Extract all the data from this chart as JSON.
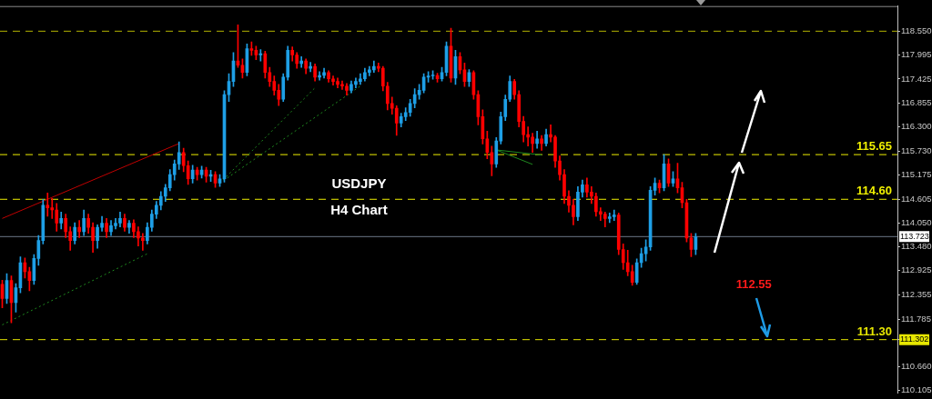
{
  "chart_data": {
    "type": "candlestick",
    "title": "USDJPY",
    "subtitle": "H4 Chart",
    "categories": [
      null,
      null,
      null,
      null,
      null,
      null,
      null,
      null,
      null,
      null,
      null,
      null,
      null,
      null,
      null,
      null,
      null,
      null,
      null,
      null,
      null,
      null,
      null,
      null,
      null,
      null,
      null,
      null,
      null,
      null,
      null,
      null,
      null,
      null,
      null,
      null,
      null,
      null,
      null,
      null,
      null,
      null,
      null,
      null,
      null,
      null,
      null,
      null,
      null,
      null,
      null,
      null,
      null,
      null,
      null,
      null,
      null,
      null,
      null,
      null,
      null,
      null,
      null,
      null,
      null,
      null,
      null,
      null,
      null,
      null,
      null,
      null,
      null,
      null,
      null,
      null,
      null,
      null,
      null,
      null,
      null,
      null,
      null,
      null,
      null,
      null,
      null,
      null,
      null,
      null,
      null,
      null,
      null,
      null,
      null,
      null,
      null,
      null,
      null,
      null,
      null,
      null,
      null,
      null,
      null,
      null,
      null,
      null,
      null,
      null,
      null,
      null,
      null,
      null,
      null,
      null,
      null,
      null,
      null,
      null,
      null,
      null,
      null,
      null,
      null,
      null,
      null,
      null,
      null,
      null,
      null,
      null,
      null,
      null,
      null,
      null,
      null,
      null,
      null,
      null,
      null,
      null,
      null,
      null,
      null,
      null,
      null,
      null,
      null,
      null,
      null,
      null,
      null,
      null,
      null,
      null,
      null,
      null,
      null,
      null,
      null,
      null,
      null,
      null,
      null,
      null,
      null,
      null,
      null,
      null,
      null,
      null,
      null,
      null,
      null,
      null,
      null,
      null,
      null,
      null,
      null,
      null,
      null,
      null,
      null,
      null,
      null,
      null,
      null,
      null,
      null,
      null,
      null,
      null,
      null,
      null,
      null,
      null
    ],
    "ohlc": [
      [
        112.6,
        112.7,
        112.05,
        112.27
      ],
      [
        112.27,
        112.85,
        112.15,
        112.69
      ],
      [
        112.69,
        112.8,
        111.7,
        112.17
      ],
      [
        112.17,
        112.62,
        111.95,
        112.52
      ],
      [
        112.52,
        113.25,
        112.4,
        113.11
      ],
      [
        113.11,
        113.22,
        112.75,
        112.9
      ],
      [
        112.9,
        113.0,
        112.45,
        112.69
      ],
      [
        112.69,
        113.3,
        112.6,
        113.21
      ],
      [
        113.21,
        113.75,
        113.05,
        113.63
      ],
      [
        113.63,
        114.6,
        113.55,
        114.46
      ],
      [
        114.46,
        114.75,
        114.2,
        114.4
      ],
      [
        114.4,
        114.62,
        114.15,
        114.35
      ],
      [
        114.35,
        114.5,
        113.85,
        114.04
      ],
      [
        114.04,
        114.3,
        113.9,
        114.15
      ],
      [
        114.15,
        114.25,
        113.7,
        113.84
      ],
      [
        113.84,
        113.95,
        113.4,
        113.63
      ],
      [
        113.63,
        114.05,
        113.55,
        113.94
      ],
      [
        113.94,
        114.1,
        113.7,
        113.84
      ],
      [
        113.84,
        114.35,
        113.75,
        114.15
      ],
      [
        114.15,
        114.25,
        113.8,
        113.94
      ],
      [
        113.94,
        114.05,
        113.35,
        113.63
      ],
      [
        113.63,
        114.0,
        113.45,
        113.94
      ],
      [
        113.94,
        114.2,
        113.85,
        114.04
      ],
      [
        114.04,
        114.15,
        113.7,
        113.84
      ],
      [
        113.84,
        114.1,
        113.75,
        113.98
      ],
      [
        113.98,
        114.15,
        113.9,
        114.04
      ],
      [
        114.04,
        114.3,
        113.95,
        114.15
      ],
      [
        114.15,
        114.25,
        113.85,
        113.94
      ],
      [
        113.94,
        114.1,
        113.8,
        114.04
      ],
      [
        114.04,
        114.12,
        113.7,
        113.84
      ],
      [
        113.84,
        113.95,
        113.5,
        113.69
      ],
      [
        113.69,
        113.8,
        113.4,
        113.63
      ],
      [
        113.63,
        114.05,
        113.55,
        113.94
      ],
      [
        113.94,
        114.35,
        113.85,
        114.25
      ],
      [
        114.25,
        114.55,
        114.15,
        114.46
      ],
      [
        114.46,
        114.78,
        114.35,
        114.67
      ],
      [
        114.67,
        114.95,
        114.55,
        114.87
      ],
      [
        114.87,
        115.3,
        114.8,
        115.18
      ],
      [
        115.18,
        115.52,
        115.05,
        115.43
      ],
      [
        115.43,
        115.95,
        115.3,
        115.7
      ],
      [
        115.7,
        115.8,
        115.25,
        115.39
      ],
      [
        115.39,
        115.5,
        114.95,
        115.08
      ],
      [
        115.08,
        115.4,
        114.98,
        115.29
      ],
      [
        115.29,
        115.35,
        115.05,
        115.18
      ],
      [
        115.18,
        115.38,
        115.1,
        115.29
      ],
      [
        115.29,
        115.35,
        115.0,
        115.14
      ],
      [
        115.14,
        115.28,
        115.02,
        115.18
      ],
      [
        115.18,
        115.25,
        114.88,
        114.98
      ],
      [
        114.98,
        115.18,
        114.9,
        115.08
      ],
      [
        115.08,
        117.15,
        115.0,
        117.06
      ],
      [
        117.06,
        117.55,
        116.9,
        117.37
      ],
      [
        117.37,
        118.05,
        117.25,
        117.85
      ],
      [
        117.85,
        118.7,
        117.7,
        117.75
      ],
      [
        117.75,
        117.9,
        117.45,
        117.58
      ],
      [
        117.58,
        118.25,
        117.5,
        118.14
      ],
      [
        118.14,
        118.3,
        117.98,
        118.1
      ],
      [
        118.1,
        118.2,
        117.88,
        117.99
      ],
      [
        117.99,
        118.12,
        117.85,
        118.02
      ],
      [
        118.02,
        118.08,
        117.45,
        117.58
      ],
      [
        117.58,
        117.7,
        117.25,
        117.37
      ],
      [
        117.37,
        117.5,
        117.05,
        117.16
      ],
      [
        117.16,
        117.3,
        116.8,
        116.95
      ],
      [
        116.95,
        117.55,
        116.9,
        117.47
      ],
      [
        117.47,
        118.2,
        117.4,
        118.1
      ],
      [
        118.1,
        118.18,
        117.85,
        117.99
      ],
      [
        117.99,
        118.05,
        117.68,
        117.79
      ],
      [
        117.79,
        117.95,
        117.7,
        117.85
      ],
      [
        117.85,
        117.9,
        117.55,
        117.68
      ],
      [
        117.68,
        117.82,
        117.6,
        117.72
      ],
      [
        117.72,
        117.78,
        117.38,
        117.47
      ],
      [
        117.47,
        117.6,
        117.4,
        117.51
      ],
      [
        117.51,
        117.68,
        117.45,
        117.58
      ],
      [
        117.58,
        117.62,
        117.35,
        117.43
      ],
      [
        117.43,
        117.5,
        117.28,
        117.37
      ],
      [
        117.37,
        117.45,
        117.22,
        117.3
      ],
      [
        117.3,
        117.38,
        117.18,
        117.26
      ],
      [
        117.26,
        117.32,
        117.05,
        117.16
      ],
      [
        117.16,
        117.38,
        117.1,
        117.3
      ],
      [
        117.3,
        117.45,
        117.22,
        117.37
      ],
      [
        117.37,
        117.55,
        117.3,
        117.43
      ],
      [
        117.43,
        117.68,
        117.38,
        117.58
      ],
      [
        117.58,
        117.72,
        117.5,
        117.64
      ],
      [
        117.64,
        117.85,
        117.58,
        117.72
      ],
      [
        117.72,
        117.8,
        117.6,
        117.68
      ],
      [
        117.68,
        117.72,
        117.15,
        117.26
      ],
      [
        117.26,
        117.35,
        116.7,
        116.85
      ],
      [
        116.85,
        117.0,
        116.6,
        116.74
      ],
      [
        116.74,
        116.8,
        116.1,
        116.39
      ],
      [
        116.39,
        116.62,
        116.3,
        116.54
      ],
      [
        116.54,
        116.75,
        116.45,
        116.64
      ],
      [
        116.64,
        116.95,
        116.55,
        116.85
      ],
      [
        116.85,
        117.2,
        116.75,
        117.06
      ],
      [
        117.06,
        117.3,
        116.95,
        117.16
      ],
      [
        117.16,
        117.55,
        117.1,
        117.47
      ],
      [
        117.47,
        117.6,
        117.35,
        117.5
      ],
      [
        117.5,
        117.62,
        117.42,
        117.51
      ],
      [
        117.51,
        117.56,
        117.35,
        117.43
      ],
      [
        117.43,
        117.7,
        117.38,
        117.58
      ],
      [
        117.58,
        118.3,
        117.5,
        118.2
      ],
      [
        118.2,
        118.62,
        117.35,
        117.45
      ],
      [
        117.45,
        118.1,
        117.3,
        117.95
      ],
      [
        117.95,
        118.05,
        117.55,
        117.64
      ],
      [
        117.64,
        117.8,
        117.25,
        117.37
      ],
      [
        117.37,
        117.65,
        117.25,
        117.58
      ],
      [
        117.58,
        117.62,
        116.95,
        117.06
      ],
      [
        117.06,
        117.15,
        116.35,
        116.54
      ],
      [
        116.54,
        116.7,
        115.9,
        116.02
      ],
      [
        116.02,
        116.2,
        115.55,
        115.7
      ],
      [
        115.7,
        115.85,
        115.15,
        115.43
      ],
      [
        115.43,
        116.05,
        115.35,
        115.97
      ],
      [
        115.97,
        116.65,
        115.9,
        116.54
      ],
      [
        116.54,
        117.05,
        116.45,
        116.95
      ],
      [
        116.95,
        117.5,
        116.9,
        117.37
      ],
      [
        117.37,
        117.42,
        116.95,
        117.06
      ],
      [
        117.06,
        117.15,
        116.3,
        116.43
      ],
      [
        116.43,
        116.55,
        115.95,
        116.12
      ],
      [
        116.12,
        116.3,
        115.85,
        116.06
      ],
      [
        116.06,
        116.15,
        115.7,
        115.91
      ],
      [
        115.91,
        116.2,
        115.8,
        116.02
      ],
      [
        116.02,
        116.1,
        115.75,
        115.91
      ],
      [
        115.91,
        116.25,
        115.85,
        116.12
      ],
      [
        116.12,
        116.35,
        115.95,
        116.06
      ],
      [
        116.06,
        116.1,
        115.35,
        115.5
      ],
      [
        115.5,
        115.62,
        115.05,
        115.18
      ],
      [
        115.18,
        115.3,
        114.5,
        114.67
      ],
      [
        114.67,
        114.8,
        114.3,
        114.46
      ],
      [
        114.46,
        114.6,
        114.0,
        114.19
      ],
      [
        114.19,
        114.9,
        114.1,
        114.77
      ],
      [
        114.77,
        115.05,
        114.65,
        114.94
      ],
      [
        114.94,
        115.1,
        114.65,
        114.77
      ],
      [
        114.77,
        114.9,
        114.5,
        114.67
      ],
      [
        114.67,
        114.75,
        114.2,
        114.31
      ],
      [
        114.31,
        114.4,
        114.1,
        114.25
      ],
      [
        114.25,
        114.3,
        113.95,
        114.15
      ],
      [
        114.15,
        114.28,
        114.05,
        114.19
      ],
      [
        114.19,
        114.35,
        114.1,
        114.23
      ],
      [
        114.23,
        114.28,
        113.3,
        113.42
      ],
      [
        113.42,
        113.55,
        112.95,
        113.11
      ],
      [
        113.11,
        113.4,
        112.8,
        112.9
      ],
      [
        112.9,
        113.05,
        112.58,
        112.65
      ],
      [
        112.65,
        113.2,
        112.6,
        113.11
      ],
      [
        113.11,
        113.45,
        113.0,
        113.32
      ],
      [
        113.32,
        113.65,
        113.15,
        113.48
      ],
      [
        113.48,
        114.9,
        113.4,
        114.81
      ],
      [
        114.81,
        115.1,
        114.7,
        114.98
      ],
      [
        114.98,
        115.05,
        114.75,
        114.87
      ],
      [
        114.87,
        115.65,
        114.8,
        115.43
      ],
      [
        115.43,
        115.55,
        114.9,
        114.98
      ],
      [
        114.98,
        115.25,
        114.9,
        115.08
      ],
      [
        115.08,
        115.45,
        114.75,
        114.87
      ],
      [
        114.87,
        115.0,
        114.4,
        114.52
      ],
      [
        114.52,
        114.6,
        113.6,
        113.69
      ],
      [
        113.69,
        113.8,
        113.25,
        113.42
      ],
      [
        113.42,
        113.8,
        113.3,
        113.72
      ],
      null,
      null,
      null,
      null,
      null,
      null,
      null,
      null,
      null,
      null,
      null,
      null,
      null,
      null,
      null,
      null,
      null,
      null,
      null,
      null,
      null,
      null,
      null,
      null,
      null,
      null,
      null,
      null,
      null,
      null,
      null,
      null,
      null,
      null,
      null,
      null,
      null,
      null,
      null,
      null,
      null,
      null,
      null,
      null
    ],
    "colors": [
      "#ff0000",
      "#1e9fe6",
      "#ff0000",
      "#1e9fe6",
      "#1e9fe6",
      "#ff0000",
      "#ff0000",
      "#1e9fe6",
      "#1e9fe6",
      "#1e9fe6",
      "#ff0000",
      "#ff0000",
      "#ff0000",
      "#1e9fe6",
      "#ff0000",
      "#ff0000",
      "#1e9fe6",
      "#ff0000",
      "#1e9fe6",
      "#ff0000",
      "#ff0000",
      "#1e9fe6",
      "#1e9fe6",
      "#ff0000",
      "#1e9fe6",
      "#1e9fe6",
      "#1e9fe6",
      "#ff0000",
      "#1e9fe6",
      "#ff0000",
      "#ff0000",
      "#ff0000",
      "#1e9fe6",
      "#1e9fe6",
      "#1e9fe6",
      "#1e9fe6",
      "#1e9fe6",
      "#1e9fe6",
      "#1e9fe6",
      "#1e9fe6",
      "#ff0000",
      "#ff0000",
      "#1e9fe6",
      "#ff0000",
      "#1e9fe6",
      "#ff0000",
      "#1e9fe6",
      "#ff0000",
      "#1e9fe6",
      "#1e9fe6",
      "#1e9fe6",
      "#1e9fe6",
      "#ff0000",
      "#ff0000",
      "#1e9fe6",
      "#ff0000",
      "#ff0000",
      "#1e9fe6",
      "#ff0000",
      "#ff0000",
      "#ff0000",
      "#ff0000",
      "#1e9fe6",
      "#1e9fe6",
      "#ff0000",
      "#ff0000",
      "#1e9fe6",
      "#ff0000",
      "#1e9fe6",
      "#ff0000",
      "#1e9fe6",
      "#1e9fe6",
      "#ff0000",
      "#ff0000",
      "#ff0000",
      "#ff0000",
      "#ff0000",
      "#1e9fe6",
      "#1e9fe6",
      "#1e9fe6",
      "#1e9fe6",
      "#1e9fe6",
      "#1e9fe6",
      "#ff0000",
      "#ff0000",
      "#ff0000",
      "#ff0000",
      "#ff0000",
      "#1e9fe6",
      "#1e9fe6",
      "#1e9fe6",
      "#1e9fe6",
      "#1e9fe6",
      "#1e9fe6",
      "#1e9fe6",
      "#1e9fe6",
      "#ff0000",
      "#1e9fe6",
      "#1e9fe6",
      "#ff0000",
      "#1e9fe6",
      "#ff0000",
      "#ff0000",
      "#1e9fe6",
      "#ff0000",
      "#ff0000",
      "#ff0000",
      "#ff0000",
      "#ff0000",
      "#1e9fe6",
      "#1e9fe6",
      "#1e9fe6",
      "#1e9fe6",
      "#ff0000",
      "#ff0000",
      "#ff0000",
      "#ff0000",
      "#ff0000",
      "#1e9fe6",
      "#ff0000",
      "#1e9fe6",
      "#ff0000",
      "#ff0000",
      "#ff0000",
      "#ff0000",
      "#ff0000",
      "#ff0000",
      "#1e9fe6",
      "#1e9fe6",
      "#ff0000",
      "#ff0000",
      "#ff0000",
      "#ff0000",
      "#ff0000",
      "#1e9fe6",
      "#1e9fe6",
      "#ff0000",
      "#ff0000",
      "#ff0000",
      "#ff0000",
      "#1e9fe6",
      "#1e9fe6",
      "#1e9fe6",
      "#1e9fe6",
      "#1e9fe6",
      "#ff0000",
      "#1e9fe6",
      "#ff0000",
      "#1e9fe6",
      "#ff0000",
      "#ff0000",
      "#ff0000",
      "#ff0000",
      "#1e9fe6",
      null,
      null,
      null,
      null,
      null,
      null,
      null,
      null,
      null,
      null,
      null,
      null,
      null,
      null,
      null,
      null,
      null,
      null,
      null,
      null,
      null,
      null,
      null,
      null,
      null,
      null,
      null,
      null,
      null,
      null,
      null,
      null,
      null,
      null,
      null,
      null,
      null,
      null,
      null,
      null,
      null,
      null,
      null,
      null
    ],
    "series": [
      {
        "type": "line",
        "color": "#c00000",
        "line_style": "solid",
        "values": [
          114.15,
          null,
          null,
          null,
          null,
          null,
          null,
          null,
          null,
          null,
          null,
          null,
          null,
          null,
          null,
          null,
          null,
          null,
          null,
          null,
          null,
          null,
          null,
          null,
          null,
          null,
          null,
          null,
          null,
          null,
          null,
          null,
          null,
          null,
          null,
          null,
          null,
          null,
          null,
          115.91,
          null,
          null,
          null,
          null,
          null,
          null,
          null,
          null,
          null,
          null,
          null,
          null,
          null,
          null,
          null,
          null,
          null,
          null,
          null,
          null,
          null,
          null,
          null,
          null,
          null,
          null,
          null,
          null,
          null,
          null,
          null,
          null,
          null,
          null,
          null,
          null,
          null,
          null,
          null,
          null,
          null,
          null,
          null,
          null,
          null,
          null,
          null,
          null,
          null,
          null,
          null,
          null,
          null,
          null,
          null,
          null,
          null,
          null,
          null,
          null,
          null,
          null,
          null,
          null,
          null,
          null,
          null,
          null,
          null,
          null,
          null,
          null,
          null,
          null,
          null,
          null,
          null,
          null,
          null,
          null,
          null,
          null,
          null,
          null,
          null,
          null,
          null,
          null,
          null,
          null,
          null,
          null,
          null,
          null,
          null,
          null,
          null,
          null,
          null,
          null,
          null,
          null,
          null,
          null,
          null,
          null,
          null,
          null,
          null,
          null,
          null,
          null,
          null,
          null,
          null,
          null,
          null,
          null,
          null,
          null,
          null,
          null,
          null,
          null,
          null,
          null,
          null,
          null,
          null,
          null,
          null,
          null,
          null,
          null,
          null,
          null,
          null,
          null,
          null,
          null,
          null,
          null,
          null,
          null,
          null,
          null,
          null,
          null,
          null,
          null,
          null,
          null,
          null,
          null,
          null,
          null,
          null,
          null
        ]
      },
      {
        "type": "line",
        "color": "#1f8a1f",
        "line_style": "dotted",
        "values": [
          111.65,
          null,
          null,
          null,
          null,
          null,
          null,
          null,
          null,
          null,
          null,
          null,
          null,
          null,
          null,
          null,
          null,
          null,
          null,
          null,
          null,
          null,
          null,
          null,
          null,
          null,
          null,
          null,
          null,
          null,
          null,
          null,
          113.32,
          null,
          null,
          null,
          null,
          null,
          null,
          null,
          null,
          null,
          null,
          null,
          null,
          null,
          null,
          null,
          null,
          null,
          null,
          null,
          null,
          null,
          null,
          null,
          null,
          null,
          null,
          null,
          null,
          null,
          null,
          null,
          null,
          null,
          null,
          null,
          null,
          null,
          null,
          null,
          null,
          null,
          null,
          null,
          null,
          null,
          null,
          null,
          null,
          null,
          null,
          null,
          null,
          null,
          null,
          null,
          null,
          null,
          null,
          null,
          null,
          null,
          null,
          null,
          null,
          null,
          null,
          null,
          null,
          null,
          null,
          null,
          null,
          null,
          null,
          null,
          null,
          null,
          null,
          null,
          null,
          null,
          null,
          null,
          null,
          null,
          null,
          null,
          null,
          null,
          null,
          null,
          null,
          null,
          null,
          null,
          null,
          null,
          null,
          null,
          null,
          null,
          null,
          null,
          null,
          null,
          null,
          null,
          null,
          null,
          null,
          null,
          null,
          null,
          null,
          null,
          null,
          null,
          null,
          null,
          null,
          null,
          null,
          null,
          null,
          null,
          null,
          null,
          null,
          null,
          null,
          null,
          null,
          null,
          null,
          null,
          null,
          null,
          null,
          null,
          null,
          null,
          null,
          null,
          null,
          null,
          null,
          null,
          null,
          null,
          null,
          null,
          null,
          null,
          null,
          null,
          null,
          null,
          null,
          null,
          null,
          null,
          null,
          null,
          null,
          null
        ]
      },
      {
        "type": "line",
        "color": "#1f8a1f",
        "line_style": "dotted",
        "values": [
          null,
          null,
          null,
          null,
          null,
          null,
          null,
          null,
          null,
          null,
          null,
          null,
          null,
          null,
          null,
          null,
          null,
          null,
          null,
          null,
          null,
          null,
          null,
          null,
          null,
          null,
          null,
          null,
          null,
          null,
          null,
          null,
          null,
          null,
          null,
          null,
          null,
          null,
          null,
          null,
          null,
          null,
          null,
          null,
          null,
          null,
          null,
          null,
          114.98,
          null,
          null,
          null,
          null,
          null,
          null,
          null,
          null,
          null,
          null,
          null,
          null,
          null,
          null,
          null,
          null,
          null,
          null,
          null,
          null,
          117.22,
          null,
          null,
          null,
          null,
          null,
          null,
          null,
          null,
          null,
          null,
          null,
          null,
          null,
          null,
          null,
          null,
          null,
          null,
          null,
          null,
          null,
          null,
          null,
          null,
          null,
          null,
          null,
          null,
          null,
          null,
          null,
          null,
          null,
          null,
          null,
          null,
          null,
          null,
          null,
          null,
          null,
          null,
          null,
          null,
          null,
          null,
          null,
          null,
          null,
          null,
          null,
          null,
          null,
          null,
          null,
          null,
          null,
          null,
          null,
          null,
          null,
          null,
          null,
          null,
          null,
          null,
          null,
          null,
          null,
          null,
          null,
          null,
          null,
          null,
          null,
          null,
          null,
          null,
          null,
          null,
          null,
          null,
          null,
          null,
          null,
          null,
          null,
          null,
          null,
          null,
          null,
          null,
          null,
          null,
          null,
          null,
          null,
          null,
          null,
          null,
          null,
          null,
          null,
          null,
          null,
          null,
          null,
          null,
          null,
          null,
          null,
          null,
          null,
          null,
          null,
          null,
          null,
          null,
          null,
          null,
          null,
          null,
          null,
          null,
          null,
          null,
          null,
          null
        ]
      },
      {
        "type": "line",
        "color": "#1f8a1f",
        "line_style": "dotted",
        "values": [
          null,
          null,
          null,
          null,
          null,
          null,
          null,
          null,
          null,
          null,
          null,
          null,
          null,
          null,
          null,
          null,
          null,
          null,
          null,
          null,
          null,
          null,
          null,
          null,
          null,
          null,
          null,
          null,
          null,
          null,
          null,
          null,
          null,
          null,
          null,
          null,
          null,
          null,
          null,
          null,
          null,
          null,
          null,
          null,
          null,
          null,
          null,
          null,
          114.98,
          null,
          null,
          null,
          null,
          null,
          null,
          null,
          null,
          null,
          null,
          null,
          null,
          null,
          null,
          null,
          null,
          null,
          null,
          null,
          null,
          null,
          null,
          null,
          null,
          null,
          null,
          null,
          null,
          null,
          null,
          117.26,
          null,
          null,
          null,
          null,
          null,
          null,
          null,
          null,
          null,
          null,
          null,
          null,
          null,
          null,
          null,
          null,
          null,
          null,
          null,
          null,
          null,
          null,
          null,
          null,
          null,
          null,
          null,
          null,
          null,
          null,
          null,
          null,
          null,
          null,
          null,
          null,
          null,
          null,
          null,
          null,
          null,
          null,
          null,
          null,
          null,
          null,
          null,
          null,
          null,
          null,
          null,
          null,
          null,
          null,
          null,
          null,
          null,
          null,
          null,
          null,
          null,
          null,
          null,
          null,
          null,
          null,
          null,
          null,
          null,
          null,
          null,
          null,
          null,
          null,
          null,
          null,
          null,
          null,
          null,
          null,
          null,
          null,
          null,
          null,
          null,
          null,
          null,
          null,
          null,
          null,
          null,
          null,
          null,
          null,
          null,
          null,
          null,
          null,
          null,
          null,
          null,
          null,
          null,
          null,
          null,
          null,
          null,
          null,
          null,
          null,
          null,
          null,
          null,
          null,
          null,
          null,
          null,
          null
        ]
      },
      {
        "type": "line",
        "color": "#1f8a1f",
        "line_style": "solid",
        "values": [
          null,
          null,
          null,
          null,
          null,
          null,
          null,
          null,
          null,
          null,
          null,
          null,
          null,
          null,
          null,
          null,
          null,
          null,
          null,
          null,
          null,
          null,
          null,
          null,
          null,
          null,
          null,
          null,
          null,
          null,
          null,
          null,
          null,
          null,
          null,
          null,
          null,
          null,
          null,
          null,
          null,
          null,
          null,
          null,
          null,
          null,
          null,
          null,
          null,
          null,
          null,
          null,
          null,
          null,
          null,
          null,
          null,
          null,
          null,
          null,
          null,
          null,
          null,
          null,
          null,
          null,
          null,
          null,
          null,
          null,
          null,
          null,
          null,
          null,
          null,
          null,
          null,
          null,
          null,
          null,
          null,
          null,
          null,
          null,
          null,
          null,
          null,
          null,
          null,
          null,
          null,
          null,
          null,
          null,
          null,
          null,
          null,
          null,
          null,
          null,
          null,
          null,
          null,
          null,
          null,
          null,
          null,
          null,
          null,
          115.76,
          null,
          null,
          null,
          null,
          null,
          null,
          null,
          null,
          null,
          115.64,
          null,
          null,
          null,
          null,
          null,
          null,
          null,
          null,
          null,
          null,
          null,
          null,
          null,
          null,
          null,
          null,
          null,
          null,
          null,
          null,
          null,
          null,
          null,
          null,
          null,
          null,
          null,
          null,
          null,
          null,
          null,
          null,
          null,
          null,
          null,
          null,
          null,
          null,
          null,
          null,
          null,
          null,
          null,
          null,
          null,
          null,
          null,
          null,
          null,
          null,
          null,
          null,
          null,
          null,
          null,
          null,
          null,
          null,
          null,
          null,
          null,
          null,
          null,
          null,
          null,
          null,
          null,
          null,
          null,
          null,
          null,
          null,
          null,
          null,
          null,
          null,
          null,
          null
        ]
      },
      {
        "type": "line",
        "color": "#1f8a1f",
        "line_style": "solid",
        "values": [
          null,
          null,
          null,
          null,
          null,
          null,
          null,
          null,
          null,
          null,
          null,
          null,
          null,
          null,
          null,
          null,
          null,
          null,
          null,
          null,
          null,
          null,
          null,
          null,
          null,
          null,
          null,
          null,
          null,
          null,
          null,
          null,
          null,
          null,
          null,
          null,
          null,
          null,
          null,
          null,
          null,
          null,
          null,
          null,
          null,
          null,
          null,
          null,
          null,
          null,
          null,
          null,
          null,
          null,
          null,
          null,
          null,
          null,
          null,
          null,
          null,
          null,
          null,
          null,
          null,
          null,
          null,
          null,
          null,
          null,
          null,
          null,
          null,
          null,
          null,
          null,
          null,
          null,
          null,
          null,
          null,
          null,
          null,
          null,
          null,
          null,
          null,
          null,
          null,
          null,
          null,
          null,
          null,
          null,
          null,
          null,
          null,
          null,
          null,
          null,
          null,
          null,
          null,
          null,
          null,
          null,
          null,
          null,
          null,
          115.76,
          null,
          null,
          null,
          null,
          null,
          null,
          null,
          115.42,
          null,
          null,
          null,
          null,
          null,
          null,
          null,
          null,
          null,
          null,
          null,
          null,
          null,
          null,
          null,
          null,
          null,
          null,
          null,
          null,
          null,
          null,
          null,
          null,
          null,
          null,
          null,
          null,
          null,
          null,
          null,
          null,
          null,
          null,
          null,
          null,
          null,
          null,
          null,
          null,
          null,
          null,
          null,
          null,
          null,
          null,
          null,
          null,
          null,
          null,
          null,
          null,
          null,
          null,
          null,
          null,
          null,
          null,
          null,
          null,
          null,
          null,
          null,
          null,
          null,
          null,
          null,
          null,
          null,
          null,
          null,
          null,
          null,
          null,
          null,
          null,
          null,
          null,
          null,
          null
        ]
      }
    ],
    "ylim": [
      110.05,
      119.14
    ],
    "yticks": [
      {
        "value": 118.55,
        "label": "118.550"
      },
      117.995,
      117.425,
      116.855,
      {
        "value": 116.3,
        "label": "116.300"
      },
      {
        "value": 115.73,
        "label": "115.730"
      },
      115.175,
      114.605,
      {
        "value": 114.05,
        "label": "114.050"
      },
      {
        "value": 113.48,
        "label": "113.480"
      },
      112.925,
      112.355,
      111.785,
      {
        "value": 111.302,
        "label": "111.302"
      },
      {
        "value": 110.66,
        "label": "110.660"
      },
      110.105
    ],
    "ref_lines": [
      {
        "axis": "y",
        "value": 118.55,
        "color": "#b4b400",
        "line_style": "dashed"
      },
      {
        "axis": "y",
        "value": 115.65,
        "label": "115.65",
        "color": "#f0f000",
        "line_style": "dashed"
      },
      {
        "axis": "y",
        "value": 114.6,
        "label": "114.60",
        "color": "#f0f000",
        "line_style": "dashed"
      },
      {
        "axis": "y",
        "value": 111.302,
        "label": "111.30",
        "color": "#e6e600",
        "line_style": "dashed"
      },
      {
        "axis": "y",
        "value": 113.723,
        "label": "113.723",
        "color": "#6b7686",
        "line_style": "solid"
      }
    ],
    "annotations": [
      "112.55"
    ],
    "grid": false,
    "legend": false,
    "tick_labels": "y"
  }
}
